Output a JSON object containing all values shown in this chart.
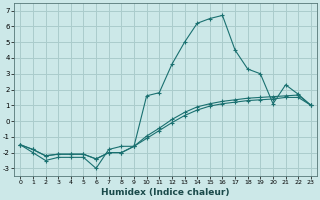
{
  "xlabel": "Humidex (Indice chaleur)",
  "bg_color": "#cce8e8",
  "grid_color": "#aacccc",
  "line_color": "#1a7070",
  "xlim": [
    -0.5,
    23.5
  ],
  "ylim": [
    -3.5,
    7.5
  ],
  "xticks": [
    0,
    1,
    2,
    3,
    4,
    5,
    6,
    7,
    8,
    9,
    10,
    11,
    12,
    13,
    14,
    15,
    16,
    17,
    18,
    19,
    20,
    21,
    22,
    23
  ],
  "yticks": [
    -3,
    -2,
    -1,
    0,
    1,
    2,
    3,
    4,
    5,
    6,
    7
  ],
  "series1_x": [
    0,
    1,
    2,
    3,
    4,
    5,
    6,
    7,
    8,
    9,
    10,
    11,
    12,
    13,
    14,
    15,
    16,
    17,
    18,
    19,
    20,
    21,
    22,
    23
  ],
  "series1_y": [
    -1.5,
    -2.0,
    -2.5,
    -2.3,
    -2.3,
    -2.3,
    -3.0,
    -1.8,
    -1.6,
    -1.6,
    1.6,
    1.8,
    3.6,
    5.0,
    6.2,
    6.5,
    6.7,
    4.5,
    3.3,
    3.0,
    1.1,
    2.3,
    1.7,
    1.0
  ],
  "series2_x": [
    0,
    1,
    2,
    3,
    4,
    5,
    6,
    7,
    8,
    9,
    10,
    11,
    12,
    13,
    14,
    15,
    16,
    17,
    18,
    19,
    20,
    21,
    22,
    23
  ],
  "series2_y": [
    -1.5,
    -1.8,
    -2.2,
    -2.1,
    -2.1,
    -2.1,
    -2.4,
    -2.0,
    -2.0,
    -1.6,
    -1.1,
    -0.6,
    -0.1,
    0.35,
    0.7,
    0.95,
    1.1,
    1.2,
    1.3,
    1.35,
    1.4,
    1.5,
    1.5,
    1.0
  ],
  "series3_x": [
    0,
    1,
    2,
    3,
    4,
    5,
    6,
    7,
    8,
    9,
    10,
    11,
    12,
    13,
    14,
    15,
    16,
    17,
    18,
    19,
    20,
    21,
    22,
    23
  ],
  "series3_y": [
    -1.5,
    -1.8,
    -2.2,
    -2.1,
    -2.1,
    -2.1,
    -2.4,
    -2.0,
    -2.0,
    -1.6,
    -0.95,
    -0.45,
    0.1,
    0.55,
    0.9,
    1.1,
    1.25,
    1.35,
    1.45,
    1.5,
    1.55,
    1.6,
    1.65,
    1.0
  ]
}
